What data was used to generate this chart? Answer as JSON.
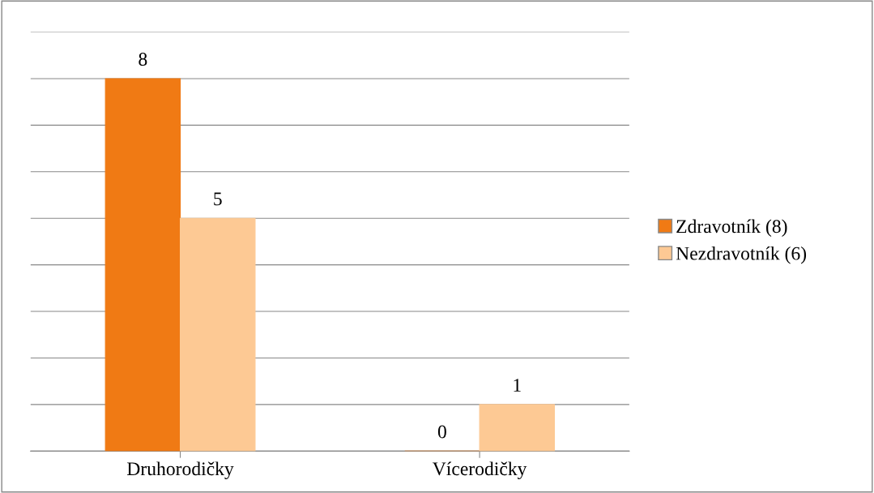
{
  "chart_data": {
    "type": "bar",
    "categories": [
      "Druhorodičky",
      "Vícerodičky"
    ],
    "series": [
      {
        "name": "Zdravotník (8)",
        "color": "#f07a14",
        "values": [
          8,
          0
        ]
      },
      {
        "name": "Nezdravotník (6)",
        "color": "#fdc994",
        "values": [
          5,
          1
        ]
      }
    ],
    "data_labels": true,
    "legend": "right",
    "grid": "y",
    "tick_labels": "x",
    "ylim": [
      0,
      9
    ],
    "yticks": [
      {
        "value": 0,
        "label": null
      },
      {
        "value": 1,
        "label": null
      },
      {
        "value": 2,
        "label": null
      },
      {
        "value": 3,
        "label": null
      },
      {
        "value": 4,
        "label": null
      },
      {
        "value": 5,
        "label": null
      },
      {
        "value": 6,
        "label": null
      },
      {
        "value": 7,
        "label": null
      },
      {
        "value": 8,
        "label": null
      },
      {
        "value": 9,
        "label": null
      }
    ]
  }
}
